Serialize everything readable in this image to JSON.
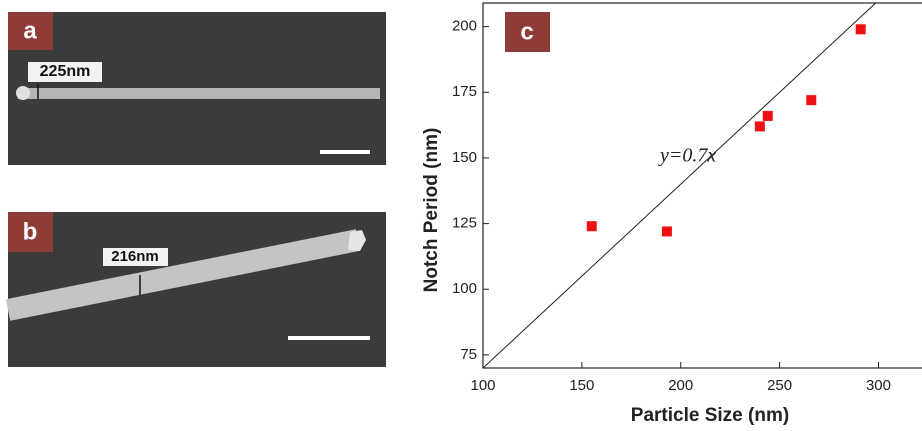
{
  "panels": {
    "a": {
      "label": "a",
      "measure": "225nm"
    },
    "b": {
      "label": "b",
      "measure": "216nm"
    }
  },
  "chart_data": {
    "type": "scatter",
    "panel_label": "c",
    "x_label": "Particle Size (nm)",
    "y_label": "Notch Period (nm)",
    "series": [
      {
        "color": "#ee1111",
        "x": [
          155,
          193,
          240,
          244,
          266,
          291
        ],
        "values": [
          124,
          122,
          162,
          166,
          172,
          199
        ]
      }
    ],
    "fit_line": {
      "label": "y=0.7x",
      "slope": 0.7
    },
    "xlim": [
      100,
      322
    ],
    "xticks": [
      100,
      150,
      200,
      250,
      300
    ],
    "ylim": [
      70,
      209
    ],
    "yticks": [
      75,
      100,
      125,
      150,
      175,
      200
    ]
  }
}
